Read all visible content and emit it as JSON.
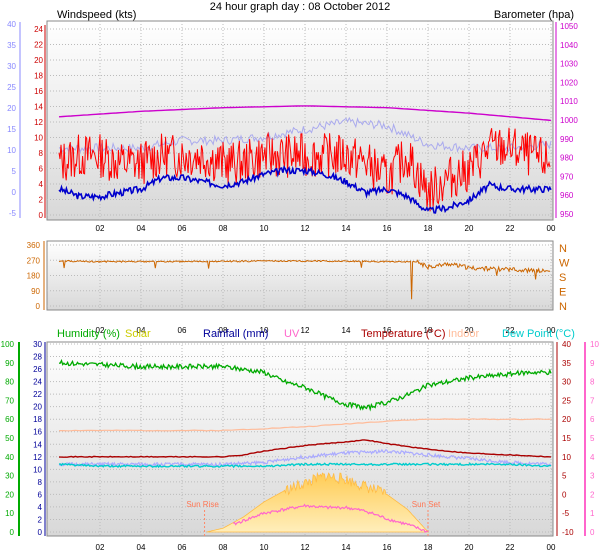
{
  "title": "24 hour graph day : 08 October 2012",
  "x_ticks": [
    "02",
    "04",
    "06",
    "08",
    "10",
    "12",
    "14",
    "16",
    "18",
    "20",
    "22",
    "00"
  ],
  "colors": {
    "wind_label": "#cc0000",
    "wind_gust": "#ff0000",
    "wind_avg": "#0000cc",
    "baro": "#cc00cc",
    "wind_axis_left": "#8888ff",
    "wind_axis_right": "#cc0000",
    "direction": "#cc6600",
    "humidity": "#00aa00",
    "solar": "#cccc00",
    "rainfall": "#000099",
    "uv": "#ff66cc",
    "temperature": "#aa0000",
    "indoor": "#ffbb99",
    "dewpoint": "#00cccc",
    "solar_fill": "#ffbb44"
  },
  "chart_data": [
    {
      "type": "line",
      "panel": "wind",
      "legend_left": "Windspeed (kts)",
      "legend_right": "Barometer (hpa)",
      "y_left_kts": {
        "ticks": [
          "24",
          "22",
          "20",
          "18",
          "16",
          "14",
          "12",
          "10",
          "8",
          "6",
          "4",
          "2",
          "0"
        ],
        "ylim": [
          0,
          25
        ]
      },
      "y_left_outer": {
        "ticks": [
          "40",
          "35",
          "30",
          "25",
          "20",
          "15",
          "10",
          "5",
          "0",
          "-5"
        ]
      },
      "y_right_hpa": {
        "ticks": [
          "1050",
          "1040",
          "1030",
          "1020",
          "1010",
          "1000",
          "990",
          "980",
          "970",
          "960",
          "950"
        ],
        "ylim": [
          947,
          1052
        ]
      },
      "series": [
        {
          "key": "baro",
          "x": [
            0,
            4,
            8,
            12,
            16,
            20,
            24
          ],
          "y": [
            1001,
            1004,
            1006,
            1007,
            1006,
            1003,
            999
          ]
        },
        {
          "key": "gust",
          "x": [
            0,
            1,
            2,
            3,
            4,
            5,
            6,
            7,
            8,
            9,
            10,
            11,
            12,
            13,
            14,
            15,
            16,
            17,
            18,
            19,
            20,
            21,
            22,
            23,
            24
          ],
          "y": [
            7,
            8,
            8,
            7,
            7,
            8,
            8,
            8,
            7,
            7,
            8,
            8,
            8,
            8,
            8,
            7,
            5,
            8,
            3,
            5,
            6,
            9,
            9,
            8,
            7
          ]
        },
        {
          "key": "avg",
          "x": [
            0,
            1,
            2,
            3,
            4,
            5,
            6,
            7,
            8,
            9,
            10,
            11,
            12,
            13,
            14,
            15,
            16,
            17,
            18,
            19,
            20,
            21,
            22,
            23,
            24
          ],
          "y": [
            3.5,
            2.5,
            2.5,
            3,
            3.5,
            5,
            5,
            4.5,
            4,
            4.5,
            5.5,
            6,
            6,
            5.5,
            4.5,
            3,
            3.5,
            2.5,
            0.5,
            1,
            2,
            4,
            3.5,
            3.5,
            3.5
          ]
        },
        {
          "key": "gust2",
          "x": [
            0,
            2,
            4,
            6,
            8,
            10,
            12,
            14,
            16,
            18,
            20,
            22,
            24
          ],
          "y": [
            9,
            9,
            9,
            10,
            10,
            10.5,
            11.5,
            12.5,
            12,
            9.5,
            9,
            9,
            9.5
          ]
        }
      ]
    },
    {
      "type": "line",
      "panel": "direction",
      "y_ticks": [
        "360",
        "270",
        "180",
        "90",
        "0"
      ],
      "compass": [
        "N",
        "W",
        "S",
        "E",
        "N"
      ],
      "ylim": [
        0,
        360
      ],
      "series": [
        {
          "key": "dir",
          "x": [
            0,
            2,
            4,
            6,
            8,
            10,
            12,
            14,
            16,
            17.5,
            18,
            19,
            20,
            22,
            24
          ],
          "y": [
            265,
            262,
            262,
            262,
            263,
            265,
            266,
            264,
            262,
            260,
            230,
            250,
            225,
            215,
            205
          ]
        }
      ]
    },
    {
      "type": "line",
      "panel": "temp",
      "legends": [
        "Humidity (%)",
        "Solar",
        "Rainfall (mm)",
        "UV",
        "Temperature (°C)",
        "Indoor",
        "Dew Point (°C)"
      ],
      "y_hum_ticks": [
        "100",
        "90",
        "80",
        "70",
        "60",
        "50",
        "40",
        "30",
        "20",
        "10",
        "0"
      ],
      "y_rain_ticks": [
        "30",
        "28",
        "26",
        "24",
        "22",
        "20",
        "18",
        "16",
        "14",
        "12",
        "10",
        "8",
        "6",
        "4",
        "2",
        "0"
      ],
      "y_temp_ticks": [
        "40",
        "35",
        "30",
        "25",
        "20",
        "15",
        "10",
        "5",
        "0",
        "-5",
        "-10"
      ],
      "y_uv_ticks": [
        "10",
        "9",
        "8",
        "7",
        "6",
        "5",
        "4",
        "3",
        "2",
        "1",
        "0"
      ],
      "temp_ylim": [
        -10,
        40
      ],
      "hum_ylim": [
        0,
        100
      ],
      "annotations": [
        "Sun Rise",
        "Sun Set"
      ],
      "series": [
        {
          "key": "humidity",
          "x": [
            0,
            2,
            4,
            6,
            8,
            10,
            11,
            12,
            13,
            14,
            15,
            16,
            17,
            18,
            19,
            20,
            22,
            23,
            24
          ],
          "y": [
            90,
            89,
            88,
            88,
            88,
            85,
            80,
            77,
            72,
            68,
            66,
            69,
            73,
            78,
            80,
            82,
            84,
            85,
            85
          ]
        },
        {
          "key": "indoor",
          "x": [
            0,
            4,
            8,
            12,
            16,
            18,
            24
          ],
          "y": [
            17,
            17,
            17,
            18,
            19.5,
            20,
            20
          ]
        },
        {
          "key": "temperature",
          "x": [
            0,
            2,
            4,
            6,
            8,
            9,
            10,
            12,
            14,
            15,
            16,
            18,
            20,
            22,
            24
          ],
          "y": [
            10,
            10,
            10,
            10,
            10,
            10.5,
            11.5,
            13,
            14,
            14.5,
            13.5,
            12,
            11,
            10.5,
            10
          ]
        },
        {
          "key": "rain_light",
          "x": [
            0,
            2,
            4,
            6,
            8,
            10,
            12,
            14,
            16,
            18,
            20,
            22,
            24
          ],
          "y": [
            8,
            8,
            8,
            8,
            8,
            8.5,
            10,
            11,
            11.5,
            10.5,
            9.5,
            8.5,
            8
          ]
        },
        {
          "key": "dewpoint",
          "x": [
            0,
            2,
            4,
            6,
            8,
            10,
            12,
            14,
            16,
            18,
            20,
            22,
            24
          ],
          "y": [
            8,
            7.5,
            7.5,
            7.5,
            7.5,
            7.5,
            8,
            8,
            8,
            8,
            8,
            8,
            7.5
          ]
        },
        {
          "key": "solar",
          "x": [
            7.2,
            8,
            9,
            10,
            11,
            12,
            13,
            14,
            15,
            16,
            17,
            18
          ],
          "y": [
            -10,
            -9,
            -6,
            -2,
            1,
            3,
            5,
            4,
            2,
            0,
            -4,
            -10
          ]
        },
        {
          "key": "uv_line",
          "x": [
            8.5,
            9,
            10,
            11,
            12,
            13,
            14,
            15,
            16,
            17,
            18
          ],
          "y": [
            -8,
            -7,
            -5,
            -4,
            -3,
            -3.5,
            -3.5,
            -4.5,
            -6.5,
            -8,
            -10
          ]
        }
      ]
    }
  ]
}
